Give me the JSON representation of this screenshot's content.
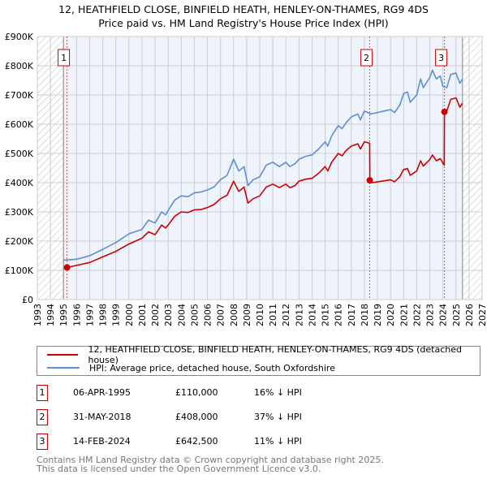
{
  "title": "12, HEATHFIELD CLOSE, BINFIELD HEATH, HENLEY-ON-THAMES, RG9 4DS",
  "subtitle": "Price paid vs. HM Land Registry's House Price Index (HPI)",
  "legend": {
    "price_label": "12, HEATHFIELD CLOSE, BINFIELD HEATH, HENLEY-ON-THAMES, RG9 4DS (detached house)",
    "hpi_label": "HPI: Average price, detached house, South Oxfordshire"
  },
  "sales": [
    {
      "num": "1",
      "date": "06-APR-1995",
      "price": "£110,000",
      "diff": "16% ↓ HPI"
    },
    {
      "num": "2",
      "date": "31-MAY-2018",
      "price": "£408,000",
      "diff": "37% ↓ HPI"
    },
    {
      "num": "3",
      "date": "14-FEB-2024",
      "price": "£642,500",
      "diff": "11% ↓ HPI"
    }
  ],
  "footer": {
    "line1": "Contains HM Land Registry data © Crown copyright and database right 2025.",
    "line2": "This data is licensed under the Open Government Licence v3.0."
  },
  "chart_data": {
    "type": "line",
    "xlim": [
      1993,
      2027
    ],
    "ylim": [
      0,
      900000
    ],
    "xticks": [
      "1993",
      "1994",
      "1995",
      "1996",
      "1997",
      "1998",
      "1999",
      "2000",
      "2001",
      "2002",
      "2003",
      "2004",
      "2005",
      "2006",
      "2007",
      "2008",
      "2009",
      "2010",
      "2011",
      "2012",
      "2013",
      "2014",
      "2015",
      "2016",
      "2017",
      "2018",
      "2019",
      "2020",
      "2021",
      "2022",
      "2023",
      "2024",
      "2025",
      "2026",
      "2027"
    ],
    "yticks": [
      {
        "v": 0,
        "label": "£0"
      },
      {
        "v": 100000,
        "label": "£100K"
      },
      {
        "v": 200000,
        "label": "£200K"
      },
      {
        "v": 300000,
        "label": "£300K"
      },
      {
        "v": 400000,
        "label": "£400K"
      },
      {
        "v": 500000,
        "label": "£500K"
      },
      {
        "v": 600000,
        "label": "£600K"
      },
      {
        "v": 700000,
        "label": "£700K"
      },
      {
        "v": 800000,
        "label": "£800K"
      },
      {
        "v": 900000,
        "label": "£900K"
      }
    ],
    "data_range": [
      1995,
      2025.5
    ],
    "sale_points": [
      {
        "x": 1995.27,
        "y": 110000,
        "label": "1"
      },
      {
        "x": 2018.41,
        "y": 408000,
        "label": "2"
      },
      {
        "x": 2024.12,
        "y": 642500,
        "label": "3"
      }
    ],
    "colors": {
      "price": "#cc0000",
      "hpi": "#5b8fd4",
      "bg": "#eef3fc",
      "grid": "#cccccc"
    },
    "series": [
      {
        "name": "price_paid",
        "x": [
          1995.27,
          1996,
          1997,
          1998,
          1999,
          2000,
          2001,
          2001.5,
          2002,
          2002.5,
          2002.8,
          2003,
          2003.5,
          2004,
          2004.5,
          2005,
          2005.5,
          2006,
          2006.5,
          2007,
          2007.5,
          2008,
          2008.4,
          2008.8,
          2009.1,
          2009.5,
          2010,
          2010.5,
          2011,
          2011.5,
          2012,
          2012.3,
          2012.7,
          2013,
          2013.5,
          2014,
          2014.5,
          2015,
          2015.2,
          2015.5,
          2016,
          2016.3,
          2016.6,
          2017,
          2017.5,
          2017.7,
          2018,
          2018.4,
          2018.42,
          2018.6,
          2019,
          2019.5,
          2020,
          2020.3,
          2020.7,
          2021,
          2021.3,
          2021.5,
          2022,
          2022.3,
          2022.5,
          2023,
          2023.2,
          2023.5,
          2023.8,
          2024.1,
          2024.12,
          2024.3,
          2024.6,
          2025,
          2025.3,
          2025.5
        ],
        "y": [
          110000,
          117000,
          127000,
          146000,
          165000,
          190000,
          210000,
          232000,
          222000,
          255000,
          245000,
          255000,
          285000,
          300000,
          298000,
          307000,
          308000,
          315000,
          325000,
          345000,
          357000,
          405000,
          370000,
          385000,
          330000,
          345000,
          355000,
          385000,
          395000,
          383000,
          395000,
          383000,
          390000,
          405000,
          412000,
          415000,
          432000,
          455000,
          440000,
          470000,
          500000,
          492000,
          510000,
          525000,
          533000,
          515000,
          540000,
          535000,
          408000,
          400000,
          403000,
          406000,
          410000,
          403000,
          420000,
          445000,
          448000,
          425000,
          440000,
          475000,
          457000,
          479000,
          495000,
          475000,
          482000,
          460000,
          642500,
          645000,
          685000,
          690000,
          658000,
          672000
        ]
      },
      {
        "name": "hpi",
        "x": [
          1995,
          1996,
          1997,
          1998,
          1999,
          2000,
          2001,
          2001.5,
          2002,
          2002.5,
          2002.8,
          2003,
          2003.5,
          2004,
          2004.5,
          2005,
          2005.5,
          2006,
          2006.5,
          2007,
          2007.5,
          2008,
          2008.4,
          2008.8,
          2009.1,
          2009.5,
          2010,
          2010.5,
          2011,
          2011.5,
          2012,
          2012.3,
          2012.7,
          2013,
          2013.5,
          2014,
          2014.5,
          2015,
          2015.2,
          2015.5,
          2016,
          2016.3,
          2016.6,
          2017,
          2017.5,
          2017.7,
          2018,
          2018.5,
          2019,
          2019.5,
          2020,
          2020.3,
          2020.7,
          2021,
          2021.3,
          2021.5,
          2022,
          2022.3,
          2022.5,
          2023,
          2023.2,
          2023.5,
          2023.8,
          2024,
          2024.3,
          2024.6,
          2025,
          2025.3,
          2025.5
        ],
        "y": [
          135000,
          138000,
          150000,
          172000,
          195000,
          225000,
          240000,
          272000,
          262000,
          300000,
          290000,
          305000,
          340000,
          355000,
          352000,
          365000,
          368000,
          375000,
          385000,
          410000,
          425000,
          480000,
          440000,
          455000,
          390000,
          410000,
          420000,
          460000,
          470000,
          455000,
          470000,
          455000,
          465000,
          480000,
          490000,
          495000,
          515000,
          540000,
          525000,
          560000,
          595000,
          585000,
          605000,
          625000,
          635000,
          615000,
          645000,
          635000,
          640000,
          645000,
          650000,
          640000,
          665000,
          705000,
          710000,
          675000,
          700000,
          755000,
          725000,
          760000,
          785000,
          755000,
          765000,
          730000,
          725000,
          770000,
          775000,
          740000,
          755000
        ]
      }
    ]
  }
}
